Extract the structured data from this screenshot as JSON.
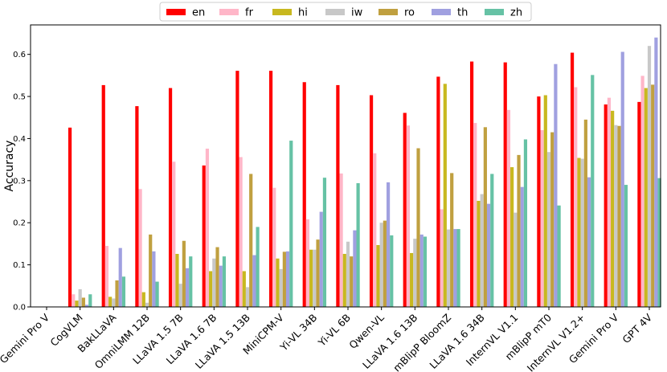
{
  "chart_data": {
    "type": "bar",
    "title": "",
    "xlabel": "",
    "ylabel": "Accuracy",
    "ylim": [
      0,
      0.67
    ],
    "yticks": [
      0.0,
      0.1,
      0.2,
      0.3,
      0.4,
      0.5,
      0.6
    ],
    "ytick_labels": [
      "0.0",
      "0.1",
      "0.2",
      "0.3",
      "0.4",
      "0.5",
      "0.6"
    ],
    "legend_position": "top-center",
    "categories": [
      "Gemini Pro V",
      "CogVLM",
      "BakLLaVA",
      "OmniLMM 12B",
      "LLaVA 1.5 7B",
      "LLaVA 1.6 7B",
      "LLaVA 1.5 13B",
      "MiniCPM-V",
      "Yi-VL 34B",
      "Yi-VL 6B",
      "Qwen-VL",
      "LLaVA 1.6 13B",
      "mBlipP BloomZ",
      "LLaVA 1.6 34B",
      "InternVL V1.1",
      "mBlipP mT0",
      "InternVL V1.2+",
      "Gemini Pro V",
      "GPT 4V"
    ],
    "series": [
      {
        "name": "en",
        "color": "#ff0000",
        "values": [
          0,
          0.426,
          0.527,
          0.477,
          0.52,
          0.336,
          0.561,
          0.561,
          0.534,
          0.527,
          0.503,
          0.461,
          0.547,
          0.583,
          0.581,
          0.5,
          0.604,
          0.481,
          0.487
        ]
      },
      {
        "name": "fr",
        "color": "#ffb6c8",
        "values": [
          0,
          0.03,
          0.145,
          0.28,
          0.345,
          0.376,
          0.356,
          0.283,
          0.208,
          0.317,
          0.365,
          0.431,
          0.232,
          0.437,
          0.468,
          0.42,
          0.522,
          0.497,
          0.549
        ]
      },
      {
        "name": "hi",
        "color": "#c8b81f",
        "values": [
          0,
          0.015,
          0.024,
          0.035,
          0.126,
          0.085,
          0.085,
          0.115,
          0.136,
          0.126,
          0.147,
          0.128,
          0.53,
          0.252,
          0.332,
          0.503,
          0.354,
          0.466,
          0.52
        ]
      },
      {
        "name": "iw",
        "color": "#c8c8c8",
        "values": [
          0,
          0.042,
          0.02,
          0.01,
          0.055,
          0.115,
          0.047,
          0.09,
          0.136,
          0.155,
          0.2,
          0.162,
          0.184,
          0.268,
          0.224,
          0.368,
          0.352,
          0.432,
          0.62
        ]
      },
      {
        "name": "ro",
        "color": "#c0a040",
        "values": [
          0,
          0.022,
          0.063,
          0.172,
          0.157,
          0.142,
          0.316,
          0.131,
          0.16,
          0.12,
          0.205,
          0.377,
          0.318,
          0.427,
          0.361,
          0.415,
          0.445,
          0.43,
          0.528
        ]
      },
      {
        "name": "th",
        "color": "#a0a0e0",
        "values": [
          0,
          0.005,
          0.14,
          0.132,
          0.092,
          0.098,
          0.123,
          0.132,
          0.226,
          0.182,
          0.296,
          0.172,
          0.185,
          0.245,
          0.285,
          0.577,
          0.308,
          0.606,
          0.64
        ]
      },
      {
        "name": "zh",
        "color": "#66c2a5",
        "values": [
          0,
          0.03,
          0.072,
          0.06,
          0.12,
          0.12,
          0.19,
          0.395,
          0.307,
          0.294,
          0.17,
          0.167,
          0.185,
          0.316,
          0.398,
          0.241,
          0.551,
          0.29,
          0.306
        ]
      }
    ]
  }
}
